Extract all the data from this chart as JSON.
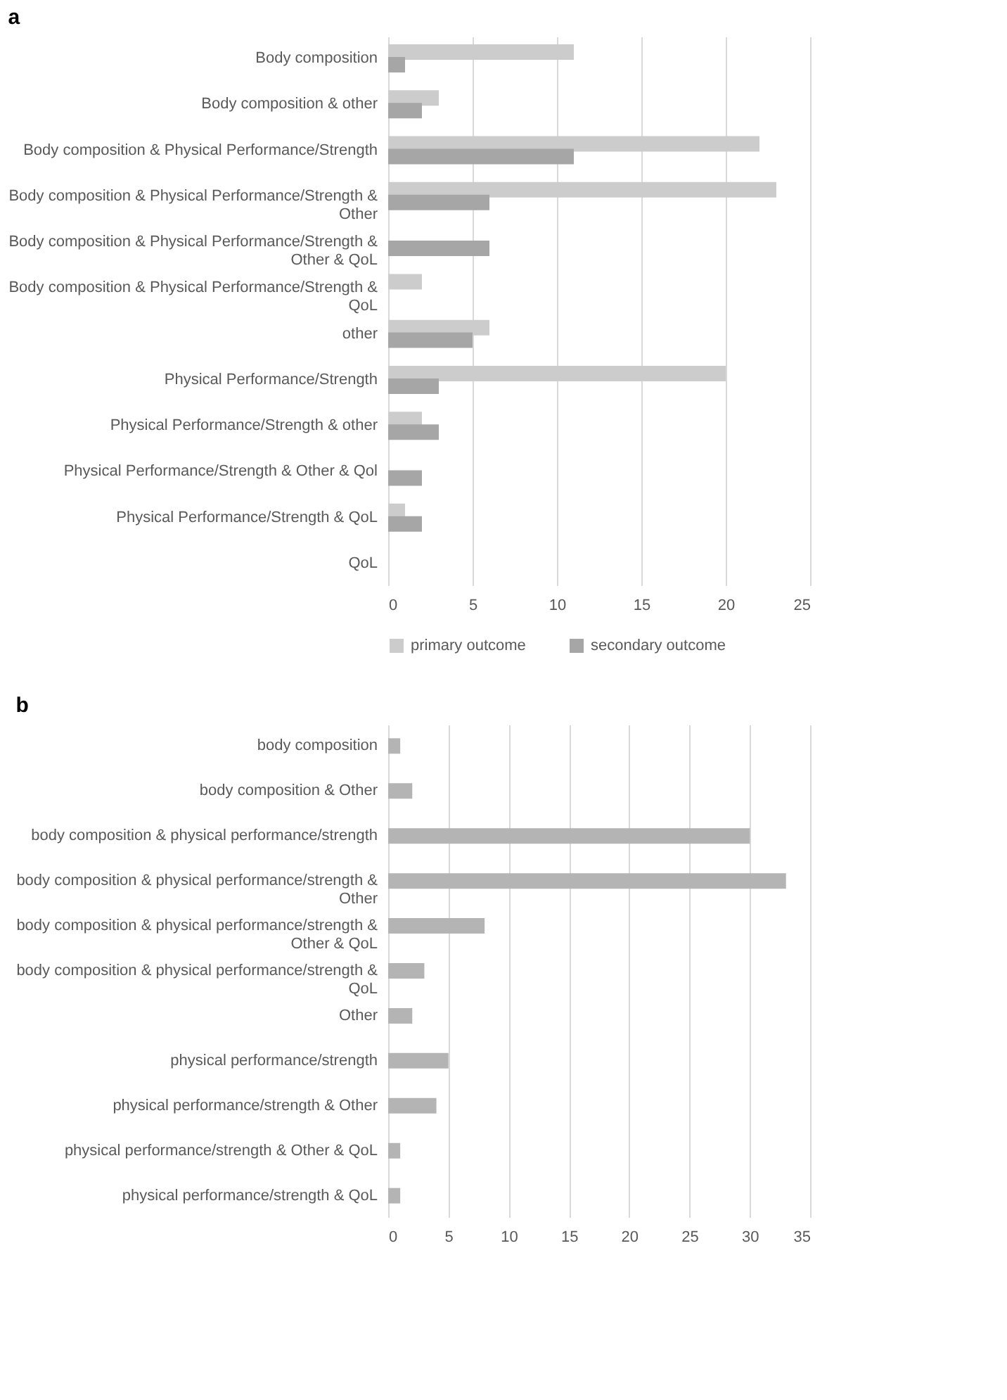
{
  "chart_data": [
    {
      "type": "bar",
      "title": "a",
      "orientation": "horizontal",
      "categories": [
        "Body composition",
        "Body composition & other",
        "Body composition & Physical Performance/Strength",
        "Body composition & Physical Performance/Strength & Other",
        "Body composition & Physical Performance/Strength & Other & QoL",
        "Body composition & Physical Performance/Strength & QoL",
        "other",
        "Physical Performance/Strength",
        "Physical Performance/Strength & other",
        "Physical Performance/Strength & Other & Qol",
        "Physical Performance/Strength & QoL",
        "QoL"
      ],
      "series": [
        {
          "name": "primary outcome",
          "color": "#cccccc",
          "values": [
            11,
            3,
            22,
            23,
            null,
            2,
            6,
            20,
            2,
            null,
            1,
            null
          ]
        },
        {
          "name": "secondary outcome",
          "color": "#a6a6a6",
          "values": [
            1,
            2,
            11,
            6,
            6,
            null,
            5,
            3,
            3,
            2,
            2,
            null
          ]
        }
      ],
      "xlim": [
        0,
        25
      ],
      "xticks": [
        0,
        5,
        10,
        15,
        20,
        25
      ],
      "grid": "x",
      "legend": "bottom"
    },
    {
      "type": "bar",
      "title": "b",
      "orientation": "horizontal",
      "categories": [
        "body composition",
        "body composition & Other",
        "body composition & physical performance/strength",
        "body composition & physical performance/strength & Other",
        "body composition & physical performance/strength & Other & QoL",
        "body composition & physical performance/strength & QoL",
        "Other",
        "physical performance/strength",
        "physical performance/strength & Other",
        "physical performance/strength & Other & QoL",
        "physical performance/strength & QoL"
      ],
      "series": [
        {
          "color": "#b4b4b4",
          "values": [
            1,
            2,
            30,
            33,
            8,
            3,
            2,
            5,
            4,
            1,
            1
          ]
        }
      ],
      "xlim": [
        0,
        35
      ],
      "xticks": [
        0,
        5,
        10,
        15,
        20,
        25,
        30,
        35
      ],
      "grid": "x"
    }
  ]
}
